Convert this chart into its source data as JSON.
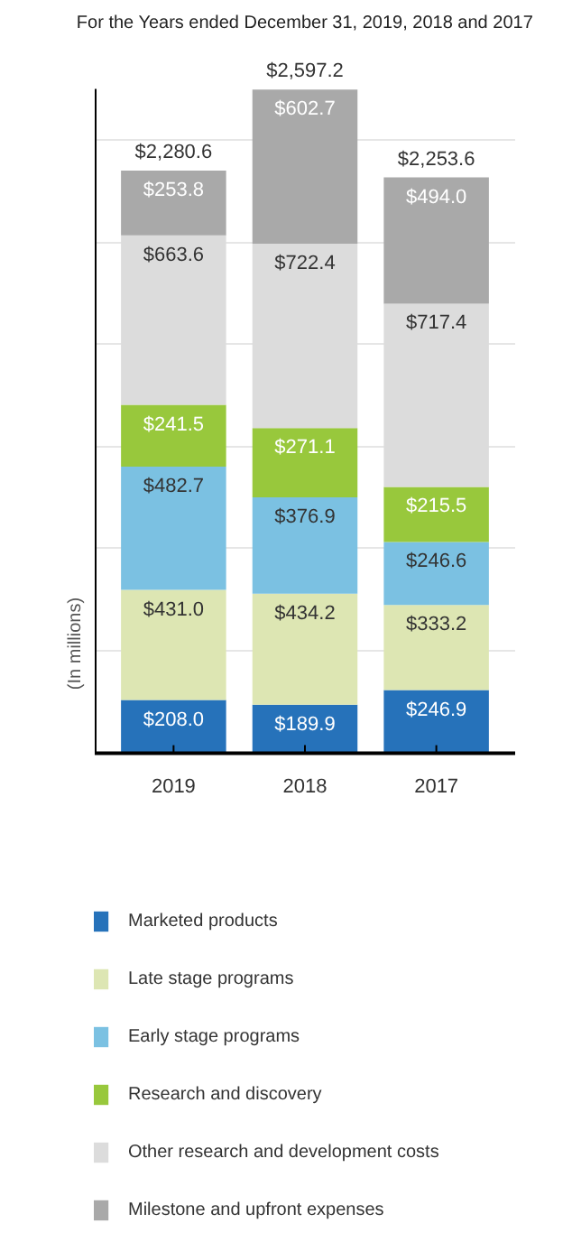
{
  "chart_data": {
    "type": "bar",
    "stacked": true,
    "title": "For the Years ended December 31, 2019, 2018 and 2017",
    "ylabel": "(In millions)",
    "categories": [
      "2019",
      "2018",
      "2017"
    ],
    "series": [
      {
        "name": "Marketed products",
        "color": "#2672ba",
        "values": [
          208.0,
          189.9,
          246.9
        ],
        "value_labels": [
          "$208.0",
          "$189.9",
          "$246.9"
        ]
      },
      {
        "name": "Late stage programs",
        "color": "#dde6b3",
        "values": [
          431.0,
          434.2,
          333.2
        ],
        "value_labels": [
          "$431.0",
          "$434.2",
          "$333.2"
        ]
      },
      {
        "name": "Early stage programs",
        "color": "#7bc1e2",
        "values": [
          482.7,
          376.9,
          246.6
        ],
        "value_labels": [
          "$482.7",
          "$376.9",
          "$246.6"
        ]
      },
      {
        "name": "Research and discovery",
        "color": "#98c83c",
        "values": [
          241.5,
          271.1,
          215.5
        ],
        "value_labels": [
          "$241.5",
          "$271.1",
          "$215.5"
        ]
      },
      {
        "name": "Other research and development costs",
        "color": "#dcdcdc",
        "values": [
          663.6,
          722.4,
          717.4
        ],
        "value_labels": [
          "$663.6",
          "$722.4",
          "$717.4"
        ]
      },
      {
        "name": "Milestone and upfront expenses",
        "color": "#a9a9a9",
        "values": [
          253.8,
          602.7,
          494.0
        ],
        "value_labels": [
          "$253.8",
          "$602.7",
          "$494.0"
        ]
      }
    ],
    "totals": [
      "$2,280.6",
      "$2,597.2",
      "$2,253.6"
    ],
    "ylim": [
      0,
      2600
    ],
    "yticks": [
      {
        "value": 400,
        "label": null
      },
      {
        "value": 800,
        "label": null
      },
      {
        "value": 1200,
        "label": null
      },
      {
        "value": 1600,
        "label": null
      },
      {
        "value": 2000,
        "label": null
      },
      {
        "value": 2400,
        "label": null
      }
    ],
    "tick_labels": "x",
    "grid": "y",
    "legend": "bottom"
  }
}
